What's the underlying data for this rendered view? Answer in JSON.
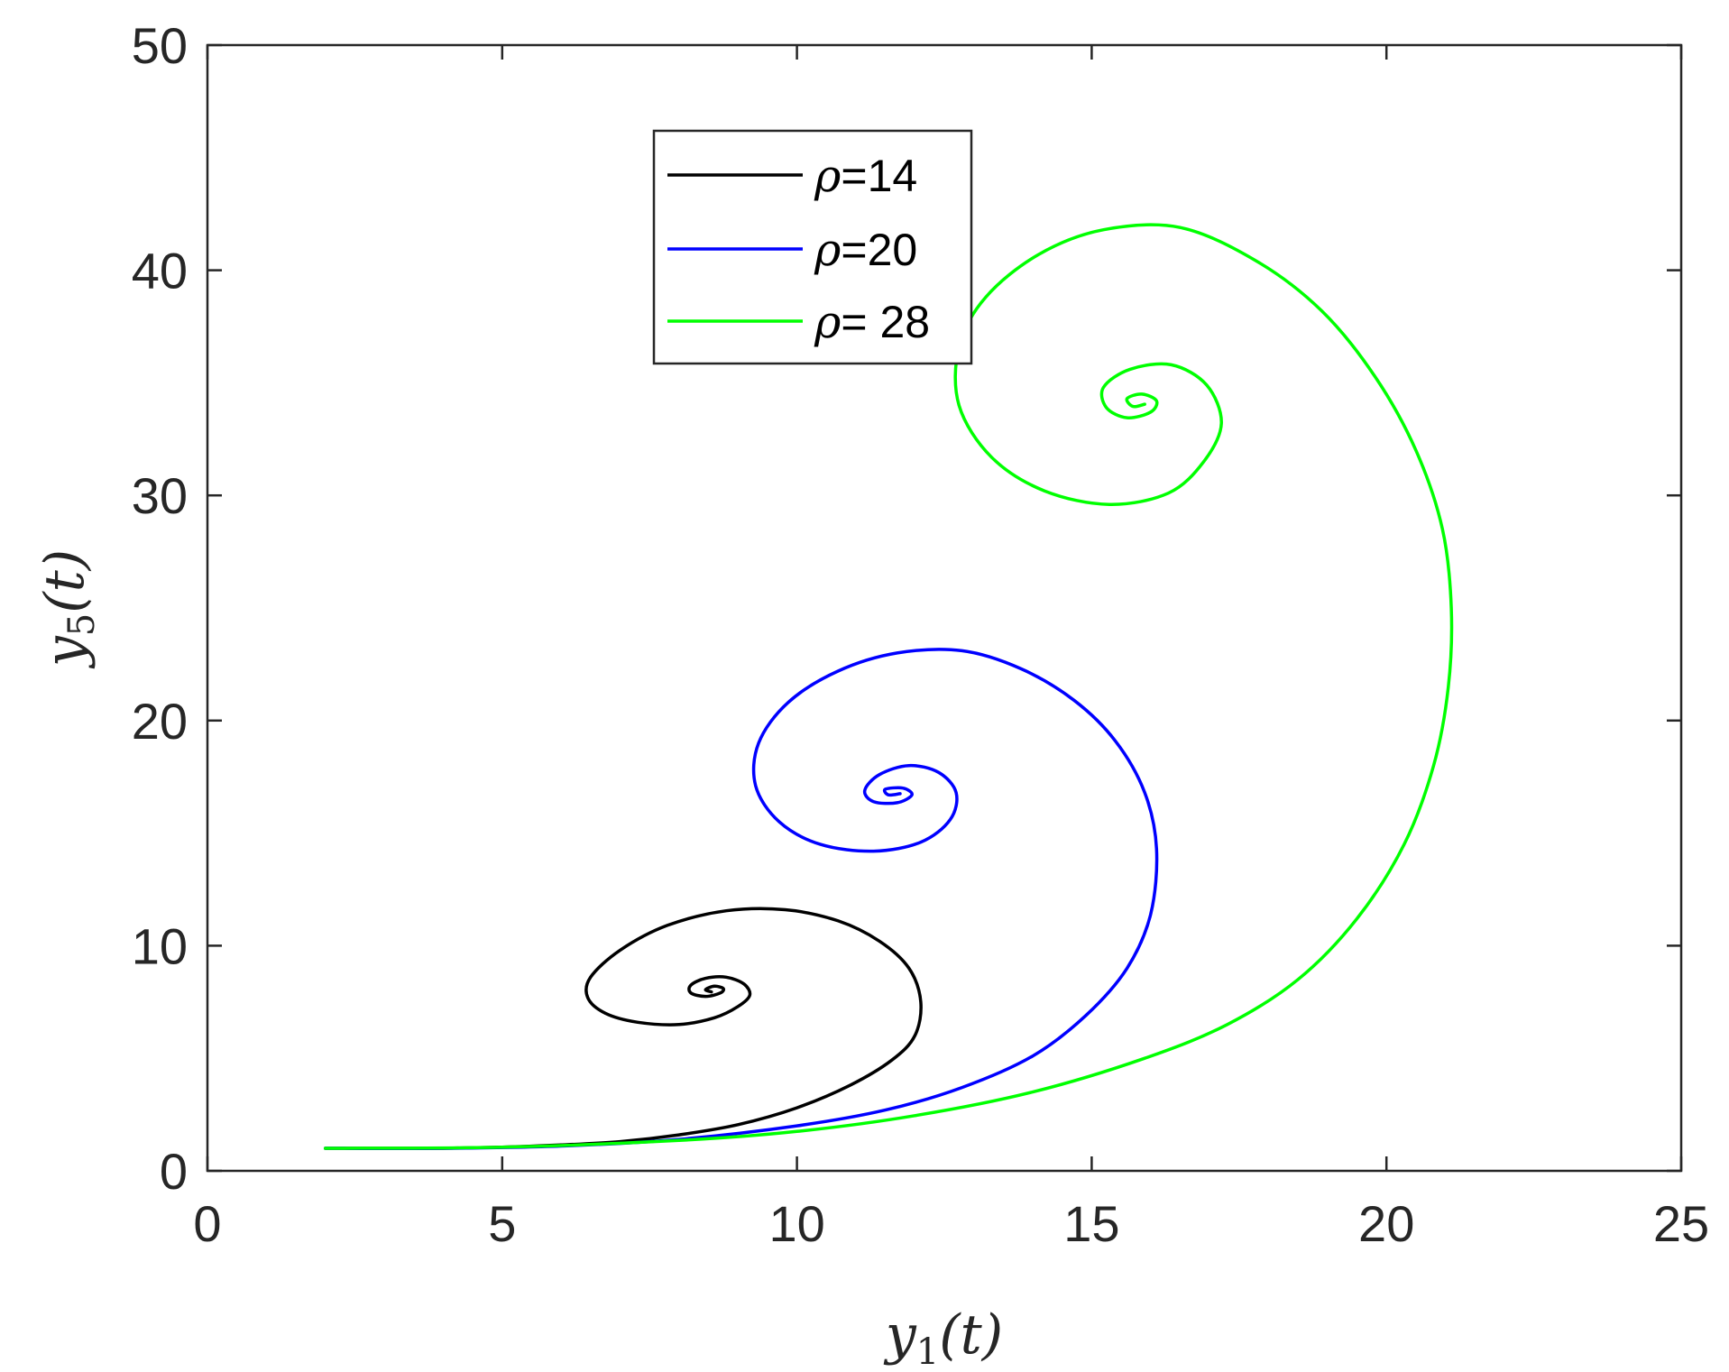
{
  "chart_data": {
    "type": "line",
    "title": "",
    "xlabel": {
      "var": "y",
      "sub": "1",
      "arg": "(t)"
    },
    "ylabel": {
      "var": "y",
      "sub": "5",
      "arg": "(t)"
    },
    "xlim": [
      0,
      25
    ],
    "ylim": [
      0,
      50
    ],
    "xticks": [
      0,
      5,
      10,
      15,
      20,
      25
    ],
    "yticks": [
      0,
      10,
      20,
      30,
      40,
      50
    ],
    "grid": false,
    "legend_position": "top-center",
    "series": [
      {
        "name_symbol": "ρ",
        "name": "=14",
        "color": "#000000",
        "points": [
          [
            2.0,
            1.0
          ],
          [
            3.0,
            1.0
          ],
          [
            4.0,
            1.0
          ],
          [
            5.0,
            1.05
          ],
          [
            6.0,
            1.15
          ],
          [
            7.0,
            1.3
          ],
          [
            8.0,
            1.6
          ],
          [
            9.0,
            2.05
          ],
          [
            10.0,
            2.8
          ],
          [
            10.9,
            3.8
          ],
          [
            11.6,
            4.9
          ],
          [
            12.0,
            6.0
          ],
          [
            12.1,
            7.5
          ],
          [
            11.9,
            9.0
          ],
          [
            11.4,
            10.2
          ],
          [
            10.7,
            11.1
          ],
          [
            9.8,
            11.6
          ],
          [
            8.8,
            11.55
          ],
          [
            7.8,
            10.9
          ],
          [
            7.0,
            9.8
          ],
          [
            6.5,
            8.6
          ],
          [
            6.45,
            7.7
          ],
          [
            6.75,
            7.0
          ],
          [
            7.3,
            6.6
          ],
          [
            8.0,
            6.5
          ],
          [
            8.6,
            6.8
          ],
          [
            9.0,
            7.3
          ],
          [
            9.2,
            7.8
          ],
          [
            9.1,
            8.3
          ],
          [
            8.8,
            8.6
          ],
          [
            8.45,
            8.55
          ],
          [
            8.2,
            8.25
          ],
          [
            8.2,
            7.9
          ],
          [
            8.45,
            7.75
          ],
          [
            8.7,
            7.9
          ],
          [
            8.75,
            8.1
          ],
          [
            8.6,
            8.2
          ],
          [
            8.45,
            8.05
          ],
          [
            8.55,
            7.95
          ]
        ]
      },
      {
        "name_symbol": "ρ",
        "name": "=20",
        "color": "#0000ff",
        "points": [
          [
            2.0,
            1.0
          ],
          [
            4.0,
            1.0
          ],
          [
            6.0,
            1.1
          ],
          [
            8.0,
            1.4
          ],
          [
            10.0,
            2.0
          ],
          [
            11.5,
            2.7
          ],
          [
            12.8,
            3.7
          ],
          [
            14.0,
            5.1
          ],
          [
            14.9,
            6.9
          ],
          [
            15.6,
            9.0
          ],
          [
            16.0,
            11.4
          ],
          [
            16.1,
            14.3
          ],
          [
            15.9,
            16.8
          ],
          [
            15.4,
            19.1
          ],
          [
            14.7,
            20.9
          ],
          [
            13.8,
            22.3
          ],
          [
            12.8,
            23.1
          ],
          [
            11.7,
            23.0
          ],
          [
            10.7,
            22.2
          ],
          [
            9.85,
            20.8
          ],
          [
            9.35,
            19.0
          ],
          [
            9.3,
            17.1
          ],
          [
            9.7,
            15.5
          ],
          [
            10.4,
            14.5
          ],
          [
            11.3,
            14.2
          ],
          [
            12.1,
            14.6
          ],
          [
            12.6,
            15.6
          ],
          [
            12.7,
            16.8
          ],
          [
            12.4,
            17.7
          ],
          [
            11.9,
            18.0
          ],
          [
            11.4,
            17.6
          ],
          [
            11.15,
            16.9
          ],
          [
            11.3,
            16.4
          ],
          [
            11.7,
            16.35
          ],
          [
            11.95,
            16.7
          ],
          [
            11.8,
            17.0
          ],
          [
            11.5,
            16.95
          ],
          [
            11.55,
            16.7
          ],
          [
            11.75,
            16.75
          ]
        ]
      },
      {
        "name_symbol": "ρ",
        "name": "= 28",
        "color": "#00ff00",
        "points": [
          [
            2.0,
            1.0
          ],
          [
            5.0,
            1.05
          ],
          [
            8.0,
            1.35
          ],
          [
            10.0,
            1.75
          ],
          [
            12.0,
            2.45
          ],
          [
            14.0,
            3.5
          ],
          [
            15.9,
            5.0
          ],
          [
            17.3,
            6.5
          ],
          [
            18.5,
            8.5
          ],
          [
            19.5,
            11.2
          ],
          [
            20.3,
            14.5
          ],
          [
            20.8,
            18.0
          ],
          [
            21.05,
            21.5
          ],
          [
            21.1,
            25.0
          ],
          [
            20.95,
            28.5
          ],
          [
            20.5,
            32.0
          ],
          [
            19.8,
            35.3
          ],
          [
            18.9,
            38.2
          ],
          [
            17.8,
            40.4
          ],
          [
            16.5,
            41.9
          ],
          [
            15.2,
            41.8
          ],
          [
            14.1,
            40.7
          ],
          [
            13.2,
            38.8
          ],
          [
            12.75,
            36.6
          ],
          [
            12.75,
            34.0
          ],
          [
            13.3,
            31.7
          ],
          [
            14.2,
            30.2
          ],
          [
            15.3,
            29.6
          ],
          [
            16.3,
            30.1
          ],
          [
            16.9,
            31.5
          ],
          [
            17.2,
            33.2
          ],
          [
            16.95,
            34.9
          ],
          [
            16.35,
            35.8
          ],
          [
            15.65,
            35.6
          ],
          [
            15.2,
            34.8
          ],
          [
            15.25,
            33.9
          ],
          [
            15.6,
            33.45
          ],
          [
            16.0,
            33.7
          ],
          [
            16.1,
            34.2
          ],
          [
            15.85,
            34.5
          ],
          [
            15.6,
            34.3
          ],
          [
            15.7,
            33.95
          ],
          [
            15.9,
            34.05
          ]
        ]
      }
    ]
  }
}
